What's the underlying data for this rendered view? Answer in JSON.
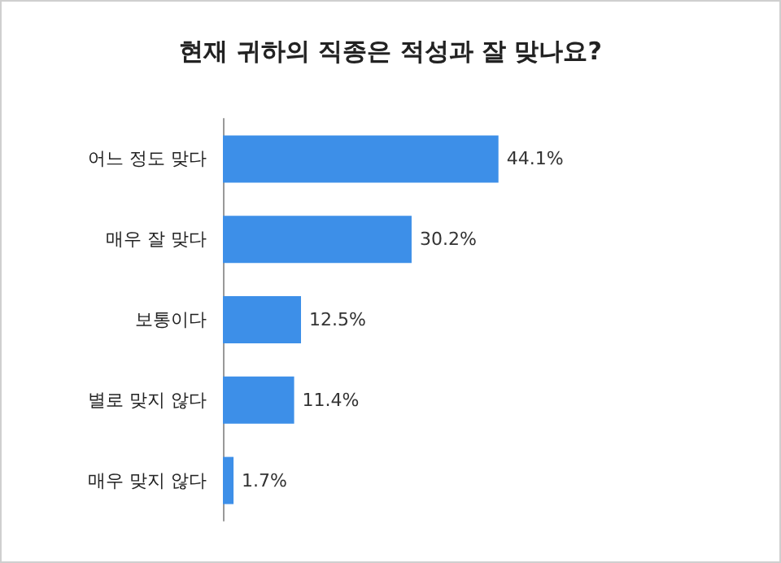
{
  "chart_data": {
    "type": "bar",
    "orientation": "horizontal",
    "title": "현재 귀하의 직종은 적성과 잘 맞나요?",
    "categories": [
      "어느 정도 맞다",
      "매우 잘 맞다",
      "보통이다",
      "별로 맞지 않다",
      "매우 맞지 않다"
    ],
    "values": [
      44.1,
      30.2,
      12.5,
      11.4,
      1.7
    ],
    "value_labels": [
      "44.1%",
      "30.2%",
      "12.5%",
      "11.4%",
      "1.7%"
    ],
    "color": "#3d8fe8"
  }
}
